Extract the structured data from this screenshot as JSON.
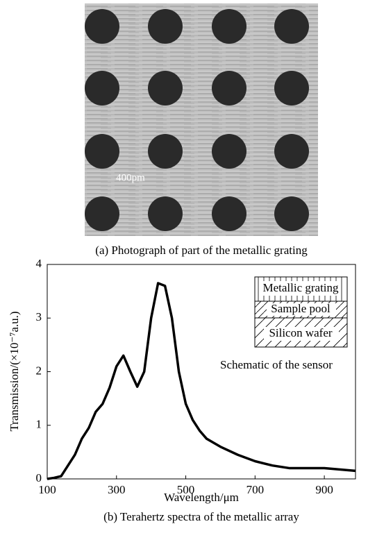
{
  "photo": {
    "scale_label": "400pm",
    "caption": "(a) Photograph of part of the metallic grating"
  },
  "chart_data": {
    "type": "line",
    "y_label": "Transmission/(×10⁻⁷a.u.)",
    "x_label": "Wavelength/μm",
    "caption": "(b) Terahertz spectra of the metallic array",
    "inset": {
      "layers": [
        "Metallic grating",
        "Sample pool",
        "Silicon wafer"
      ],
      "title": "Schematic of the sensor"
    },
    "x": [
      100,
      120,
      140,
      160,
      180,
      200,
      220,
      240,
      260,
      280,
      300,
      320,
      340,
      360,
      380,
      400,
      420,
      440,
      460,
      480,
      500,
      520,
      540,
      560,
      600,
      650,
      700,
      750,
      800,
      900,
      990
    ],
    "series": [
      {
        "color": "#000000",
        "values": [
          0,
          0.02,
          0.05,
          0.25,
          0.45,
          0.75,
          0.95,
          1.25,
          1.4,
          1.7,
          2.1,
          2.3,
          2.0,
          1.72,
          2.0,
          3.0,
          3.65,
          3.6,
          3.0,
          2.0,
          1.4,
          1.1,
          0.9,
          0.75,
          0.6,
          0.45,
          0.33,
          0.25,
          0.2,
          0.2,
          0.15
        ]
      }
    ],
    "xlim": [
      100,
      990
    ],
    "ylim": [
      0,
      4
    ],
    "xticks": [
      100,
      300,
      500,
      700,
      900
    ],
    "yticks": [
      0,
      1,
      2,
      3,
      4
    ]
  }
}
